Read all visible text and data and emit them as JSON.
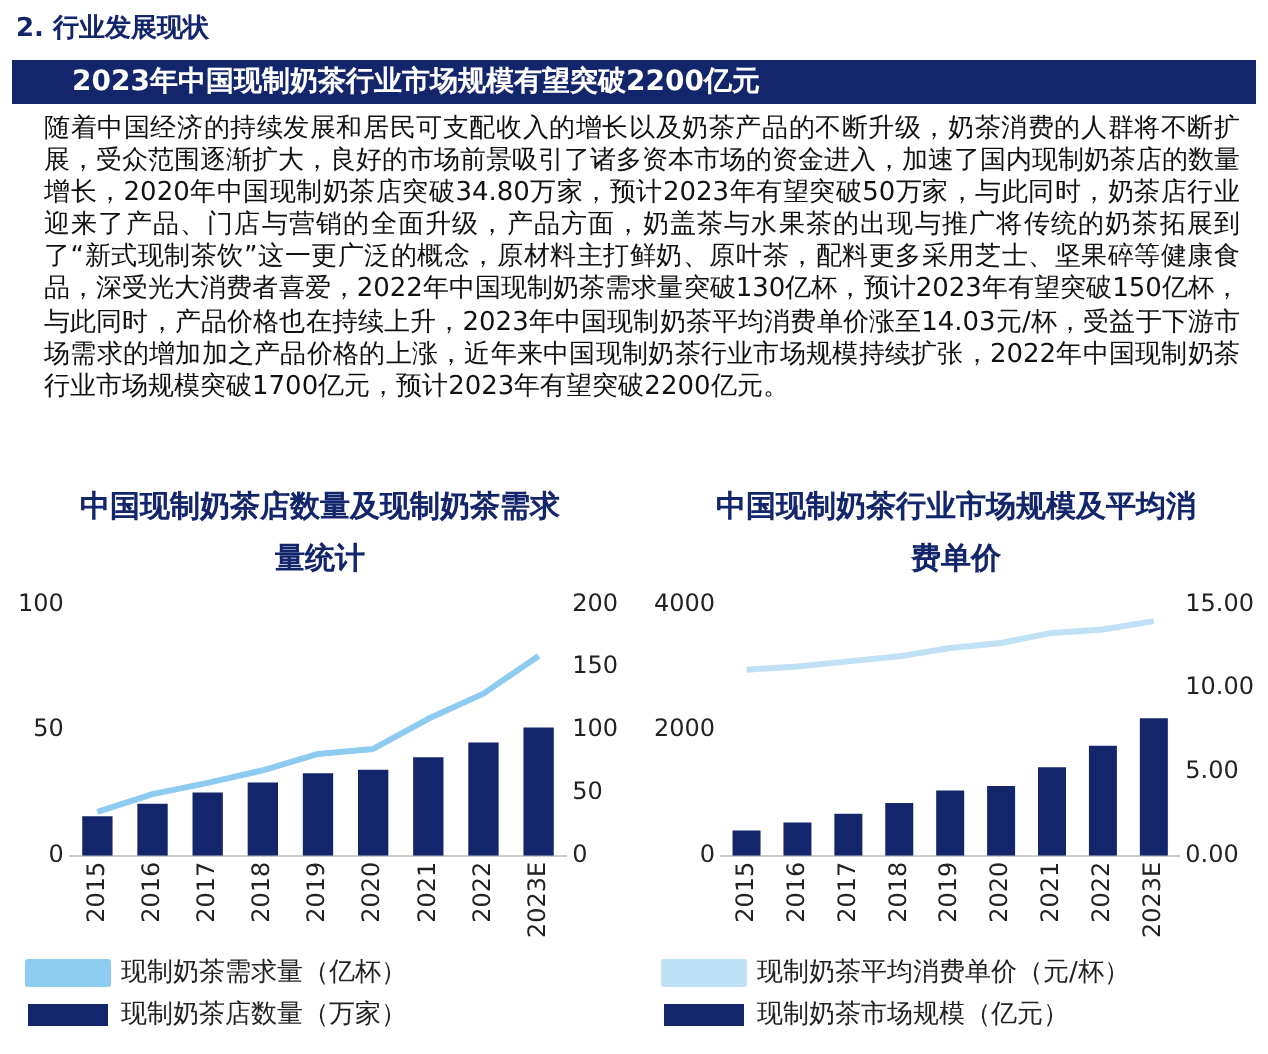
{
  "chart_data": [
    {
      "type": "other",
      "title": "2023年中国现制奶茶行业市场规模有望突破2200亿元",
      "annotations": [
        "2. 行业发展现状",
        "随着中国经济的持续发展和居民可支配收入的增长以及奶茶产品的不断升级，奶茶消费的人群将不断扩展，受众范围逐渐扩大，良好的市场前景吸引了诸多资本市场的资金进入，加速了国内现制奶茶店的数量增长，2020年中国现制奶茶店突破34.80万家，预计2023年有望突破50万家，与此同时，奶茶店行业迎来了产品、门店与营销的全面升级，产品方面，奶盖茶与水果茶的出现与推广将传统的奶茶拓展到了“新式现制茶饮”这一更广泛的概念，原材料主打鲜奶、原叶茶，配料更多采用芝士、坚果碎等健康食品，深受光大消费者喜爱，2022年中国现制奶茶需求量突破130亿杯，预计2023年有望突破150亿杯，与此同时，产品价格也在持续上升，2023年中国现制奶茶平均消费单价涨至14.03元/杯，受益于下游市场需求的增加加之产品价格的上涨，近年来中国现制奶茶行业市场规模持续扩张，2022年中国现制奶茶行业市场规模突破1700亿元，预计2023年有望突破2200亿元。"
      ]
    },
    {
      "type": "bar",
      "title": "中国现制奶茶店数量及现制奶茶需求量统计",
      "categories": [
        "2015",
        "2016",
        "2017",
        "2018",
        "2019",
        "2020",
        "2021",
        "2022",
        "2023E"
      ],
      "series": [
        {
          "name": "现制奶茶店数量（万家）",
          "type": "bar",
          "color": "#13266b",
          "values": [
            15.7,
            20.7,
            25.2,
            29.1,
            32.8,
            34.2,
            39.2,
            45.1,
            51
          ]
        },
        {
          "name": "现制奶茶需求量（亿杯）",
          "type": "line",
          "axis": "y2",
          "color": "#8ecbf0",
          "values": [
            35,
            49,
            58,
            68,
            81,
            85,
            109,
            129,
            159
          ]
        }
      ],
      "ylim": [
        0,
        100
      ],
      "yticks": [
        0,
        50,
        100
      ],
      "y2lim": [
        0,
        200
      ],
      "y2ticks": [
        0,
        50,
        100,
        150,
        200
      ],
      "grid": false,
      "legend": "bottom",
      "marker": "none",
      "line_style": "solid"
    },
    {
      "type": "bar",
      "title": "中国现制奶茶行业市场规模及平均消费单价",
      "categories": [
        "2015",
        "2016",
        "2017",
        "2018",
        "2019",
        "2020",
        "2021",
        "2022",
        "2023E"
      ],
      "series": [
        {
          "name": "现制奶茶市场规模（亿元）",
          "type": "bar",
          "color": "#13266b",
          "values": [
            400,
            530,
            670,
            840,
            1040,
            1110,
            1410,
            1750,
            2190
          ]
        },
        {
          "name": "现制奶茶平均消费单价（元/杯）",
          "type": "line",
          "axis": "y2",
          "color": "#bfe0f5",
          "values": [
            11.1,
            11.3,
            11.6,
            11.9,
            12.4,
            12.7,
            13.3,
            13.5,
            14.0
          ]
        }
      ],
      "ylim": [
        0,
        4000
      ],
      "yticks": [
        0,
        2000,
        4000
      ],
      "y2lim": [
        0,
        15
      ],
      "y2ticks": [
        {
          "value": 0,
          "label": "0.00"
        },
        {
          "value": 5,
          "label": "5.00"
        },
        {
          "value": 10,
          "label": "10.00"
        },
        {
          "value": 15,
          "label": "15.00"
        }
      ],
      "grid": false,
      "legend": "bottom",
      "marker": "none",
      "line_style": "solid"
    }
  ]
}
